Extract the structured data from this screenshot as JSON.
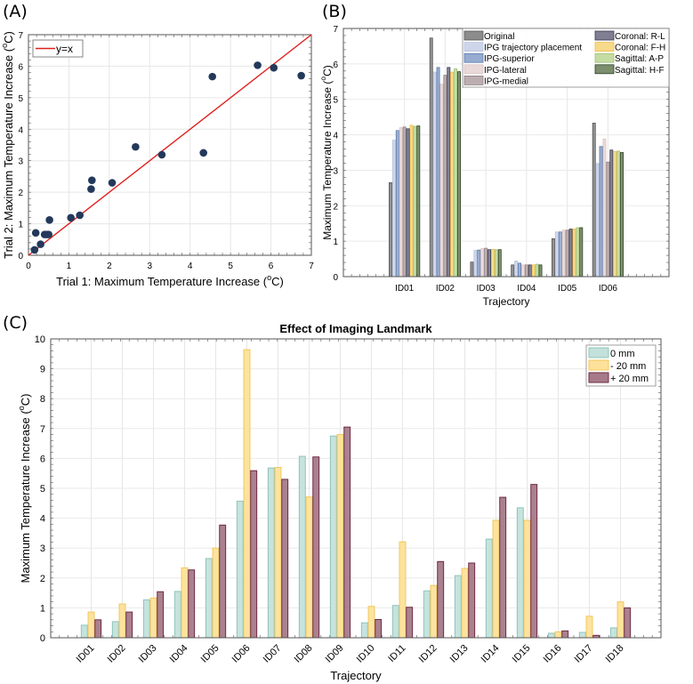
{
  "panels": {
    "a": "(A)",
    "b": "(B)",
    "c": "(C)"
  },
  "chart_data": [
    {
      "id": "A",
      "type": "scatter",
      "title": "",
      "xlabel": "Trial 1: Maximum Temperature Increase (°C)",
      "ylabel": "Trial 2: Maximum Temperature Increase (°C)",
      "xlim": [
        0,
        7
      ],
      "ylim": [
        0,
        7
      ],
      "xticks": [
        "0",
        "1",
        "2",
        "3",
        "4",
        "5",
        "6",
        "7"
      ],
      "yticks": [
        "0",
        "1",
        "2",
        "3",
        "4",
        "5",
        "6",
        "7"
      ],
      "grid": true,
      "legend": {
        "placement": "top-left",
        "entries": [
          {
            "label": "y=x",
            "color": "#e0201c"
          }
        ]
      },
      "reference_line": {
        "label": "y=x",
        "from": [
          0,
          0
        ],
        "to": [
          7,
          7
        ],
        "color": "#e0201c"
      },
      "marker_color": "#23395b",
      "points": [
        [
          0.15,
          0.17
        ],
        [
          0.18,
          0.71
        ],
        [
          0.3,
          0.35
        ],
        [
          0.4,
          0.66
        ],
        [
          0.45,
          0.66
        ],
        [
          0.5,
          0.66
        ],
        [
          0.52,
          1.12
        ],
        [
          1.05,
          1.19
        ],
        [
          1.27,
          1.27
        ],
        [
          1.55,
          2.1
        ],
        [
          1.57,
          2.38
        ],
        [
          2.07,
          2.3
        ],
        [
          2.65,
          3.44
        ],
        [
          3.3,
          3.19
        ],
        [
          4.33,
          3.25
        ],
        [
          4.55,
          5.67
        ],
        [
          5.67,
          6.03
        ],
        [
          6.07,
          5.95
        ],
        [
          6.75,
          5.7
        ]
      ]
    },
    {
      "id": "B",
      "type": "bar",
      "title": "",
      "xlabel": "Trajectory",
      "ylabel": "Maximum Temperature Increase (°C)",
      "ylim": [
        0,
        7
      ],
      "yticks": [
        "0",
        "1",
        "2",
        "3",
        "4",
        "5",
        "6",
        "7"
      ],
      "grid": true,
      "legend_placement": "top-right",
      "categories": [
        "ID01",
        "ID02",
        "ID03",
        "ID04",
        "ID05",
        "ID06"
      ],
      "series": [
        {
          "name": "Original",
          "color": "#8c8c8c",
          "edge": "#555555",
          "values": [
            2.65,
            6.73,
            0.41,
            0.33,
            1.07,
            4.33
          ]
        },
        {
          "name": "IPG trajectory placement",
          "color": "#cdd5ea",
          "edge": "#b9c3de",
          "values": [
            3.85,
            5.77,
            0.74,
            0.44,
            1.26,
            3.19
          ]
        },
        {
          "name": "IPG-superior",
          "color": "#97acd0",
          "edge": "#5b79ad",
          "values": [
            4.12,
            5.9,
            0.75,
            0.38,
            1.26,
            3.67
          ]
        },
        {
          "name": "IPG-lateral",
          "color": "#ead9d8",
          "edge": "#d8c3c2",
          "values": [
            4.2,
            5.43,
            0.79,
            0.33,
            1.31,
            3.88
          ]
        },
        {
          "name": "IPG-medial",
          "color": "#bcadb0",
          "edge": "#8f7f83",
          "values": [
            4.22,
            5.68,
            0.8,
            0.33,
            1.31,
            3.23
          ]
        },
        {
          "name": "Coronal: R-L",
          "color": "#807e92",
          "edge": "#3b3a4d",
          "values": [
            4.17,
            5.9,
            0.76,
            0.33,
            1.34,
            3.57
          ]
        },
        {
          "name": "Coronal: F-H",
          "color": "#f7d98a",
          "edge": "#edbb48",
          "values": [
            4.27,
            5.77,
            0.77,
            0.33,
            1.34,
            3.53
          ]
        },
        {
          "name": "Sagittal: A-P",
          "color": "#c4dca3",
          "edge": "#9dc274",
          "values": [
            4.24,
            5.86,
            0.76,
            0.35,
            1.38,
            3.54
          ]
        },
        {
          "name": "Sagittal: H-F",
          "color": "#7b8f6c",
          "edge": "#2f3f26",
          "values": [
            4.25,
            5.78,
            0.76,
            0.33,
            1.38,
            3.5
          ]
        }
      ]
    },
    {
      "id": "C",
      "type": "bar",
      "title": "Effect of Imaging Landmark",
      "xlabel": "Trajectory",
      "ylabel": "Maximum Temperature Increase (°C)",
      "ylim": [
        0,
        10
      ],
      "yticks": [
        "0",
        "1",
        "2",
        "3",
        "4",
        "5",
        "6",
        "7",
        "8",
        "9",
        "10"
      ],
      "grid": true,
      "legend_placement": "top-right",
      "categories": [
        "ID01",
        "ID02",
        "ID03",
        "ID04",
        "ID05",
        "ID06",
        "ID07",
        "ID08",
        "ID09",
        "ID10",
        "ID11",
        "ID12",
        "ID13",
        "ID14",
        "ID15",
        "ID16",
        "ID17",
        "ID18"
      ],
      "series": [
        {
          "name": "0 mm",
          "color": "#c3e1dc",
          "edge": "#8fc4bb",
          "values": [
            0.42,
            0.54,
            1.27,
            1.55,
            2.65,
            4.57,
            5.68,
            6.07,
            6.75,
            0.5,
            1.08,
            1.57,
            2.08,
            3.3,
            4.35,
            0.15,
            0.18,
            0.33
          ]
        },
        {
          "name": "- 20 mm",
          "color": "#fde19a",
          "edge": "#f2c75a",
          "values": [
            0.86,
            1.13,
            1.33,
            2.34,
            3.0,
            9.64,
            5.7,
            4.71,
            6.8,
            1.05,
            3.21,
            1.75,
            2.32,
            3.93,
            3.93,
            0.2,
            0.72,
            1.2
          ]
        },
        {
          "name": "+ 20 mm",
          "color": "#a77a89",
          "edge": "#6e2a44",
          "values": [
            0.6,
            0.86,
            1.54,
            2.27,
            3.77,
            5.59,
            5.3,
            6.05,
            7.05,
            0.61,
            1.02,
            2.55,
            2.5,
            4.7,
            5.13,
            0.23,
            0.08,
            1.0
          ]
        }
      ]
    }
  ]
}
